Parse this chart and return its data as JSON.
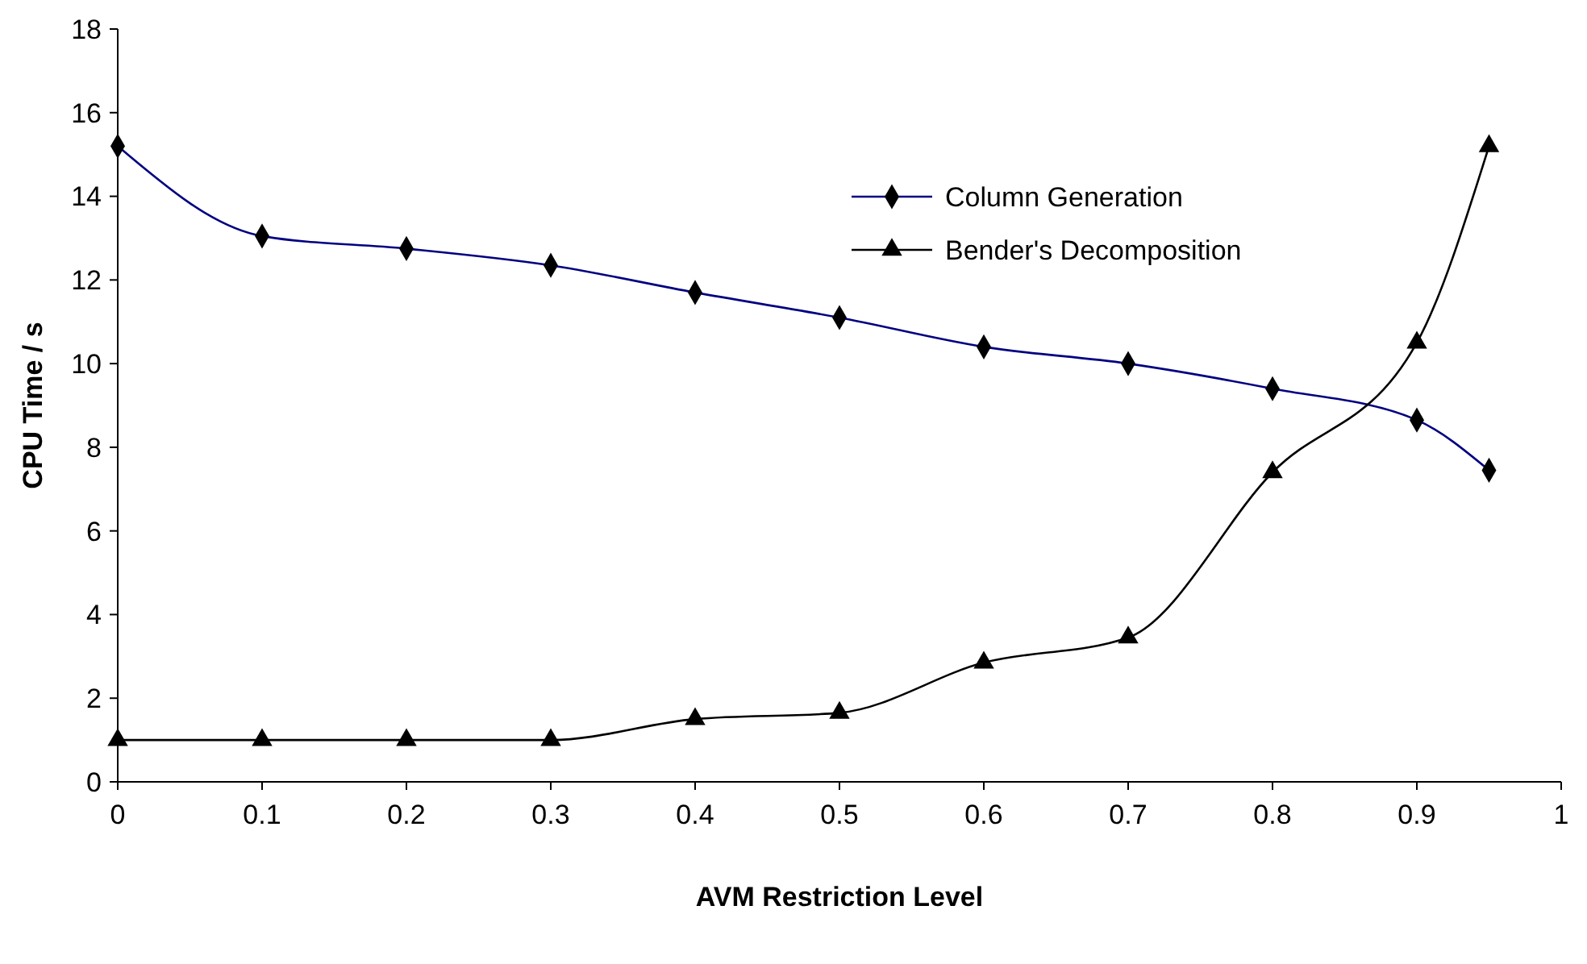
{
  "chart_data": {
    "type": "line",
    "xlabel": "AVM Restriction Level",
    "ylabel": "CPU Time / s",
    "x": [
      0,
      0.1,
      0.2,
      0.3,
      0.4,
      0.5,
      0.6,
      0.7,
      0.8,
      0.9,
      0.95
    ],
    "series": [
      {
        "name": "Column Generation",
        "color": "#000080",
        "marker": "diamond",
        "values": [
          15.2,
          13.05,
          12.75,
          12.35,
          11.7,
          11.1,
          10.4,
          10.0,
          9.4,
          8.65,
          7.45
        ]
      },
      {
        "name": "Bender's Decomposition",
        "color": "#000000",
        "marker": "triangle",
        "values": [
          1,
          1,
          1,
          1,
          1.5,
          1.65,
          2.85,
          3.45,
          7.4,
          10.5,
          15.2
        ]
      }
    ],
    "xlim": [
      0,
      1
    ],
    "xticks": [
      0,
      0.1,
      0.2,
      0.3,
      0.4,
      0.5,
      0.6,
      0.7,
      0.8,
      0.9,
      1
    ],
    "ylim": [
      0,
      18
    ],
    "yticks": [
      0,
      2,
      4,
      6,
      8,
      10,
      12,
      14,
      16,
      18
    ],
    "grid": false,
    "legend": "top right",
    "line_style": "solid"
  }
}
